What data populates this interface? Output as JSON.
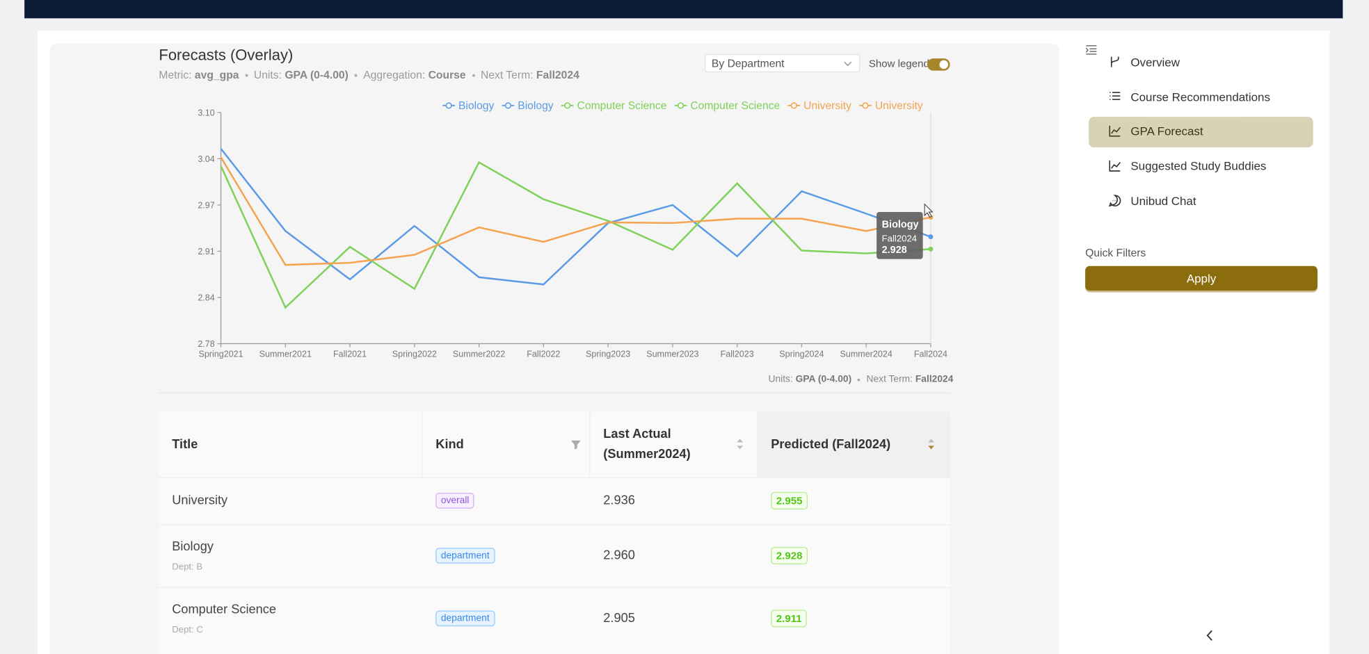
{
  "header": {
    "title": "Forecasts (Overlay)",
    "metric_label": "Metric:",
    "metric": "avg_gpa",
    "units_label": "Units:",
    "units": "GPA (0-4.00)",
    "aggregation_label": "Aggregation:",
    "aggregation": "Course",
    "next_term_label": "Next Term:",
    "next_term": "Fall2024",
    "dropdown": "By Department",
    "show_legend": "Show legend"
  },
  "chart_data": {
    "type": "line",
    "categories": [
      "Spring2021",
      "Summer2021",
      "Fall2021",
      "Spring2022",
      "Summer2022",
      "Fall2022",
      "Spring2023",
      "Summer2023",
      "Fall2023",
      "Spring2024",
      "Summer2024",
      "Fall2024"
    ],
    "series": [
      {
        "name": "Biology",
        "color": "#5b9be6",
        "values": [
          3.05,
          2.936,
          2.869,
          2.943,
          2.872,
          2.862,
          2.947,
          2.972,
          2.901,
          2.991,
          2.96,
          null
        ]
      },
      {
        "name": "Biology",
        "color": "#5b9be6",
        "values": [
          null,
          null,
          null,
          null,
          null,
          null,
          null,
          null,
          null,
          null,
          2.96,
          2.928
        ]
      },
      {
        "name": "Computer Science",
        "color": "#7fd15a",
        "values": [
          3.026,
          2.83,
          2.914,
          2.856,
          3.031,
          2.98,
          2.95,
          2.91,
          3.002,
          2.909,
          2.905,
          null
        ]
      },
      {
        "name": "Computer Science",
        "color": "#7fd15a",
        "values": [
          null,
          null,
          null,
          null,
          null,
          null,
          null,
          null,
          null,
          null,
          2.905,
          2.911
        ]
      },
      {
        "name": "University",
        "color": "#f4a450",
        "values": [
          3.038,
          2.889,
          2.892,
          2.903,
          2.941,
          2.921,
          2.948,
          2.947,
          2.953,
          2.953,
          2.936,
          null
        ]
      },
      {
        "name": "University",
        "color": "#f4a450",
        "values": [
          null,
          null,
          null,
          null,
          null,
          null,
          null,
          null,
          null,
          null,
          2.936,
          2.955
        ]
      }
    ],
    "ylim": [
      2.78,
      3.1
    ],
    "yticks": [
      2.78,
      {
        "value": 2.844,
        "label": "2.84"
      },
      {
        "value": 2.908,
        "label": "2.91"
      },
      {
        "value": 2.972,
        "label": "2.97"
      },
      {
        "value": 3.036,
        "label": "3.04"
      },
      {
        "value": 3.1,
        "label": "3.10"
      }
    ],
    "legend": "top-right",
    "grid": false,
    "tooltip_series": 1,
    "tooltip_index": 11
  },
  "table": {
    "headers": [
      "Title",
      "Kind",
      "Last Actual (Summer2024)",
      "Predicted (Fall2024)"
    ],
    "rows": [
      {
        "title": "University",
        "kind": "overall",
        "last": "2.936",
        "predicted": "2.955"
      },
      {
        "title": "Biology",
        "sub": "Dept: B",
        "kind": "department",
        "last": "2.960",
        "predicted": "2.928"
      },
      {
        "title": "Computer Science",
        "sub": "Dept: C",
        "kind": "department",
        "last": "2.905",
        "predicted": "2.911"
      }
    ]
  },
  "sidebar": {
    "items": [
      "Overview",
      "Course Recommendations",
      "GPA Forecast",
      "Suggested Study Buddies",
      "Unibud Chat"
    ],
    "selected": 2,
    "quick_filters": "Quick Filters",
    "apply": "Apply"
  }
}
